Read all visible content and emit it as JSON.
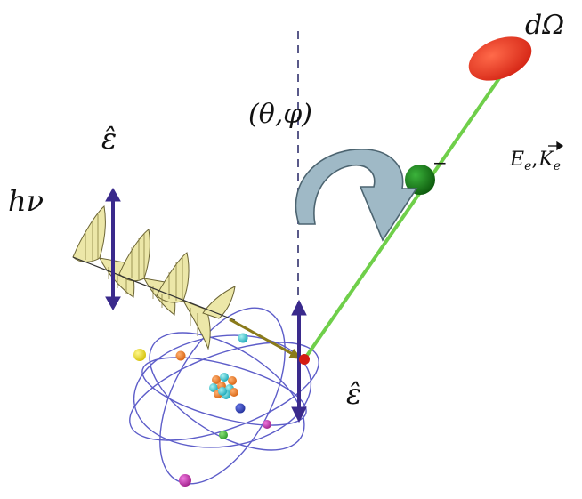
{
  "labels": {
    "d_omega": "dΩ",
    "angles": "(θ,φ)",
    "polarization_top": "ε̂",
    "photon_energy": "hν",
    "electron_energy_momentum": "E",
    "electron_energy_sub": "e",
    "electron_momentum_sym": "K",
    "electron_momentum_sub": "e",
    "electron_charge": "−",
    "polarization_atom": "ε̂"
  },
  "colors": {
    "photon_wave_fill": "#ece7a8",
    "photon_wave_stroke": "#6b6434",
    "photon_path": "#8a7a1a",
    "polarization_arrow": "#3a2a8c",
    "electron_track": "#6fcf4a",
    "electron": "#1a7a1a",
    "solid_angle": "#e23320",
    "rotation_arrow": "#9fb9c6",
    "orbit": "#5d5dc9",
    "axis_dash": "#5a5a8a"
  }
}
